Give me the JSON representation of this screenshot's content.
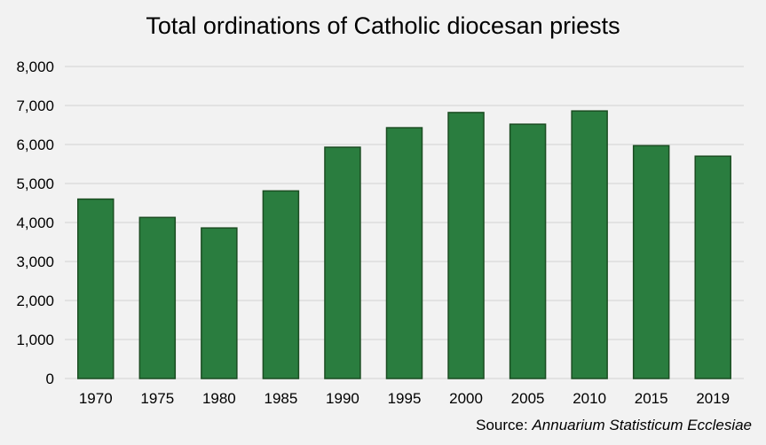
{
  "chart_data": {
    "type": "bar",
    "title": "Total ordinations of Catholic diocesan priests",
    "xlabel": "",
    "ylabel": "",
    "categories": [
      "1970",
      "1975",
      "1980",
      "1985",
      "1990",
      "1995",
      "2000",
      "2005",
      "2010",
      "2015",
      "2019"
    ],
    "values": [
      4600,
      4130,
      3860,
      4810,
      5930,
      6430,
      6820,
      6520,
      6860,
      5970,
      5700
    ],
    "ylim": [
      0,
      8000
    ],
    "yticks": [
      0,
      1000,
      2000,
      3000,
      4000,
      5000,
      6000,
      7000,
      8000
    ],
    "ytick_labels": [
      "0",
      "1,000",
      "2,000",
      "3,000",
      "4,000",
      "5,000",
      "6,000",
      "7,000",
      "8,000"
    ],
    "grid": true,
    "bar_color": "#2a7d3f",
    "bar_edge_color": "#1b4d22",
    "grid_color": "#d9d9d9"
  },
  "source": {
    "prefix": "Source: ",
    "title": "Annuarium Statisticum Ecclesiae"
  }
}
